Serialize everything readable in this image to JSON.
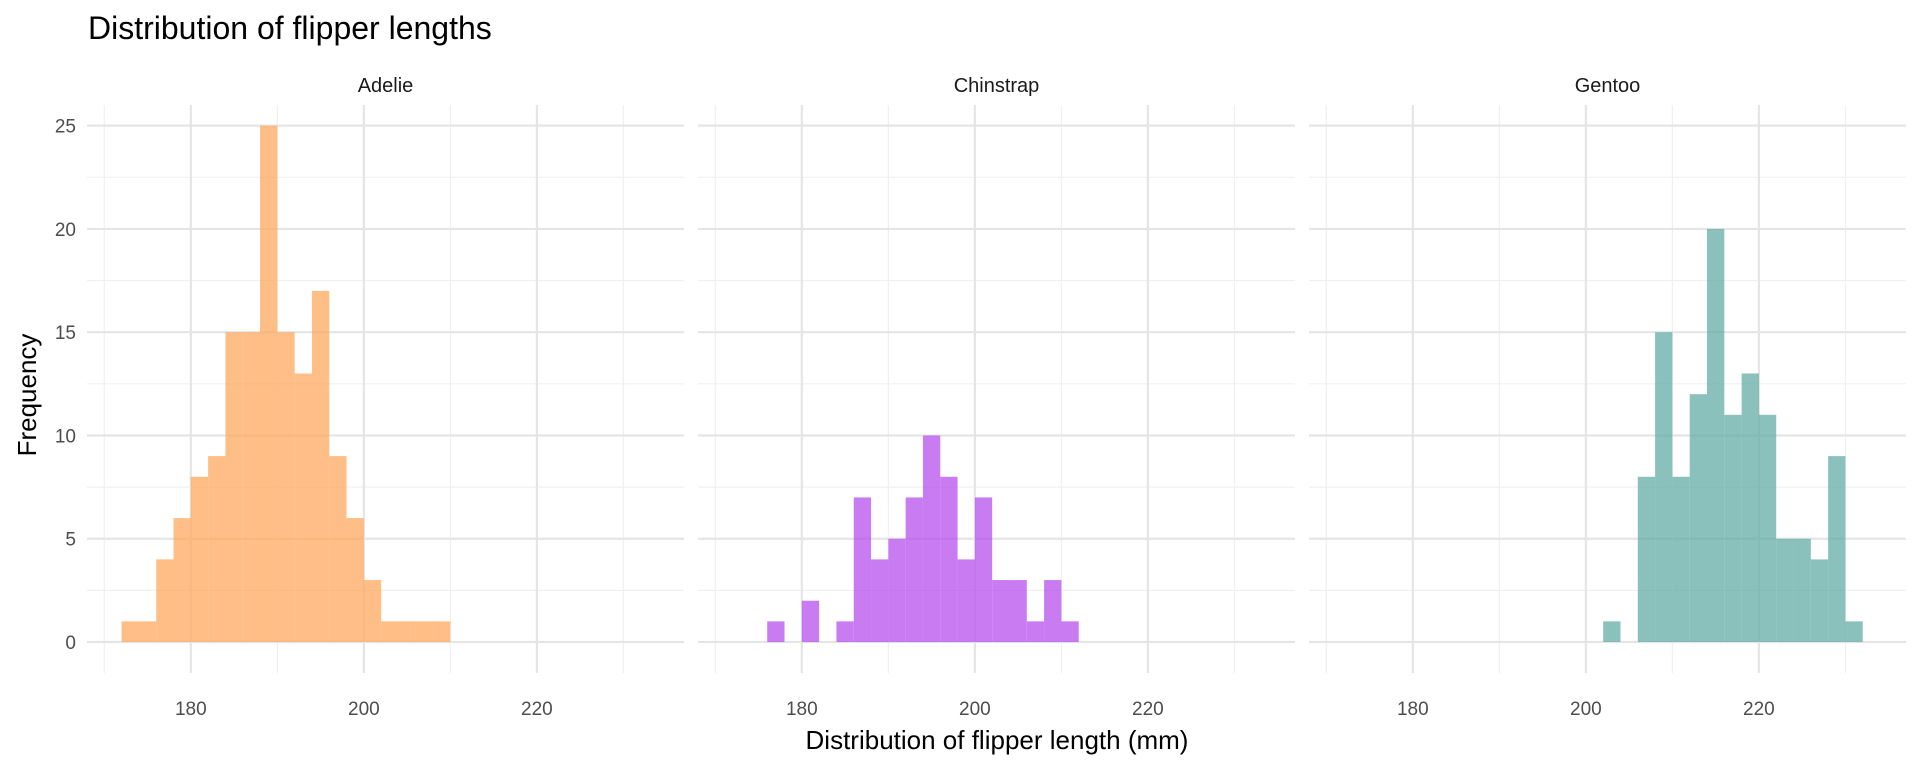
{
  "chart_data": {
    "type": "bar",
    "title": "Distribution of flipper lengths",
    "xlabel": "Distribution of flipper length (mm)",
    "ylabel": "Frequency",
    "xlim": [
      168,
      237
    ],
    "ylim": [
      -1.5,
      26
    ],
    "x_ticks": [
      180,
      200,
      220
    ],
    "y_ticks": [
      0,
      5,
      10,
      15,
      20,
      25
    ],
    "grid": true,
    "bin_width": 2,
    "panels": [
      {
        "name": "Adelie",
        "color": "#FDA556",
        "bins": [
          {
            "x0": 172,
            "count": 1
          },
          {
            "x0": 174,
            "count": 1
          },
          {
            "x0": 176,
            "count": 4
          },
          {
            "x0": 178,
            "count": 6
          },
          {
            "x0": 180,
            "count": 8
          },
          {
            "x0": 182,
            "count": 9
          },
          {
            "x0": 184,
            "count": 15
          },
          {
            "x0": 186,
            "count": 15
          },
          {
            "x0": 188,
            "count": 25
          },
          {
            "x0": 190,
            "count": 15
          },
          {
            "x0": 192,
            "count": 13
          },
          {
            "x0": 194,
            "count": 17
          },
          {
            "x0": 196,
            "count": 9
          },
          {
            "x0": 198,
            "count": 6
          },
          {
            "x0": 200,
            "count": 3
          },
          {
            "x0": 202,
            "count": 1
          },
          {
            "x0": 204,
            "count": 1
          },
          {
            "x0": 206,
            "count": 1
          },
          {
            "x0": 208,
            "count": 1
          }
        ]
      },
      {
        "name": "Chinstrap",
        "color": "#B449EC",
        "bins": [
          {
            "x0": 176,
            "count": 1
          },
          {
            "x0": 180,
            "count": 2
          },
          {
            "x0": 184,
            "count": 1
          },
          {
            "x0": 186,
            "count": 7
          },
          {
            "x0": 188,
            "count": 4
          },
          {
            "x0": 190,
            "count": 5
          },
          {
            "x0": 192,
            "count": 7
          },
          {
            "x0": 194,
            "count": 10
          },
          {
            "x0": 196,
            "count": 8
          },
          {
            "x0": 198,
            "count": 4
          },
          {
            "x0": 200,
            "count": 7
          },
          {
            "x0": 202,
            "count": 3
          },
          {
            "x0": 204,
            "count": 3
          },
          {
            "x0": 206,
            "count": 1
          },
          {
            "x0": 208,
            "count": 3
          },
          {
            "x0": 210,
            "count": 1
          }
        ]
      },
      {
        "name": "Gentoo",
        "color": "#5EA9A2",
        "bins": [
          {
            "x0": 202,
            "count": 1
          },
          {
            "x0": 206,
            "count": 8
          },
          {
            "x0": 208,
            "count": 15
          },
          {
            "x0": 210,
            "count": 8
          },
          {
            "x0": 212,
            "count": 12
          },
          {
            "x0": 214,
            "count": 20
          },
          {
            "x0": 216,
            "count": 11
          },
          {
            "x0": 218,
            "count": 13
          },
          {
            "x0": 220,
            "count": 11
          },
          {
            "x0": 222,
            "count": 5
          },
          {
            "x0": 224,
            "count": 5
          },
          {
            "x0": 226,
            "count": 4
          },
          {
            "x0": 228,
            "count": 9
          },
          {
            "x0": 230,
            "count": 1
          }
        ]
      }
    ]
  }
}
